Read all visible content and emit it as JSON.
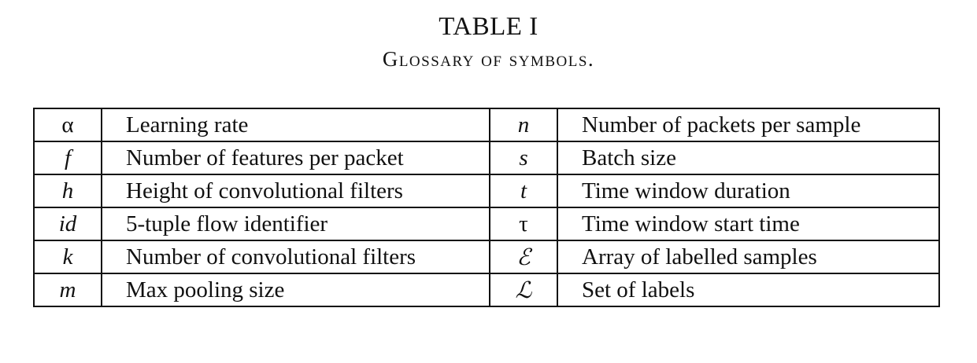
{
  "caption": {
    "label": "TABLE I",
    "title": "Glossary of symbols."
  },
  "rows": [
    {
      "left_symbol": "α",
      "left_desc": "Learning rate",
      "right_symbol": "n",
      "right_desc": "Number of packets per sample"
    },
    {
      "left_symbol": "f",
      "left_desc": "Number of features per packet",
      "right_symbol": "s",
      "right_desc": "Batch size"
    },
    {
      "left_symbol": "h",
      "left_desc": "Height of convolutional filters",
      "right_symbol": "t",
      "right_desc": "Time window duration"
    },
    {
      "left_symbol": "id",
      "left_desc": "5-tuple flow identifier",
      "right_symbol": "τ",
      "right_desc": "Time window start time"
    },
    {
      "left_symbol": "k",
      "left_desc": "Number of convolutional filters",
      "right_symbol": "ℰ",
      "right_desc": "Array of labelled samples"
    },
    {
      "left_symbol": "m",
      "left_desc": "Max pooling size",
      "right_symbol": "ℒ",
      "right_desc": "Set of labels"
    }
  ]
}
